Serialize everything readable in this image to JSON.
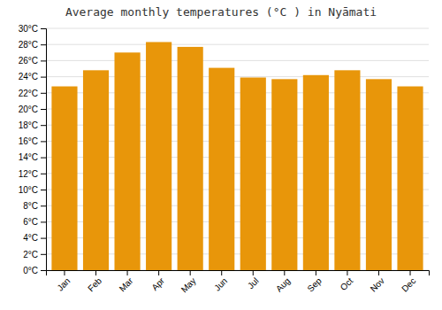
{
  "chart_data": {
    "type": "bar",
    "title": "Average monthly temperatures (°C ) in Nyāmati",
    "categories": [
      "Jan",
      "Feb",
      "Mar",
      "Apr",
      "May",
      "Jun",
      "Jul",
      "Aug",
      "Sep",
      "Oct",
      "Nov",
      "Dec"
    ],
    "values": [
      22.8,
      24.8,
      27.0,
      28.3,
      27.7,
      25.1,
      23.9,
      23.7,
      24.2,
      24.8,
      23.7,
      22.8
    ],
    "color": "#E8960A",
    "ylim": [
      0,
      30
    ],
    "yticks": [
      {
        "value": 0,
        "label": "0°C"
      },
      {
        "value": 2,
        "label": "2°C"
      },
      {
        "value": 4,
        "label": "4°C"
      },
      {
        "value": 6,
        "label": "6°C"
      },
      {
        "value": 8,
        "label": "8°C"
      },
      {
        "value": 10,
        "label": "10°C"
      },
      {
        "value": 12,
        "label": "12°C"
      },
      {
        "value": 14,
        "label": "14°C"
      },
      {
        "value": 16,
        "label": "16°C"
      },
      {
        "value": 18,
        "label": "18°C"
      },
      {
        "value": 20,
        "label": "20°C"
      },
      {
        "value": 22,
        "label": "22°C"
      },
      {
        "value": 24,
        "label": "24°C"
      },
      {
        "value": 26,
        "label": "26°C"
      },
      {
        "value": 28,
        "label": "28°C"
      },
      {
        "value": 30,
        "label": "30°C"
      }
    ],
    "grid": true
  }
}
